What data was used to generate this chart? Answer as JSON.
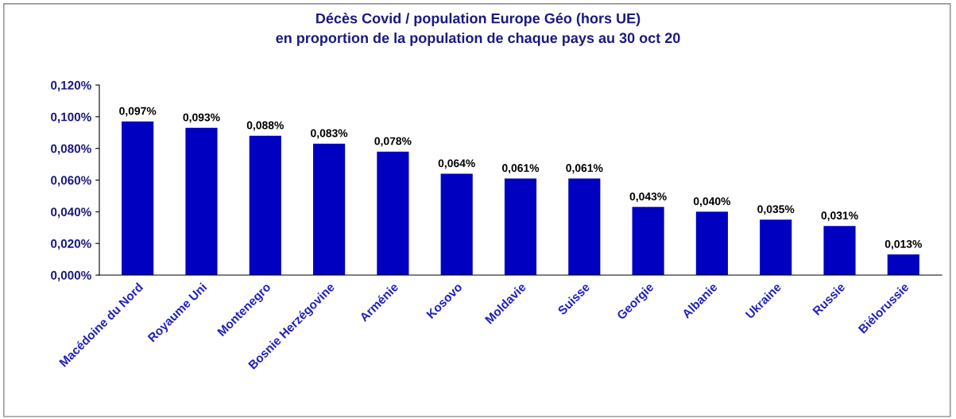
{
  "chart_data": {
    "type": "bar",
    "title": "Décès Covid / population Europe Géo (hors UE)\nen proportion de la population de chaque pays au 30 oct 20",
    "categories": [
      "Macédoine du Nord",
      "Royaume Uni",
      "Montenegro",
      "Bosnie Herzégovine",
      "Arménie",
      "Kosovo",
      "Moldavie",
      "Suisse",
      "Georgie",
      "Albanie",
      "Ukraine",
      "Russie",
      "Biélorussie"
    ],
    "values": [
      0.097,
      0.093,
      0.088,
      0.083,
      0.078,
      0.064,
      0.061,
      0.061,
      0.043,
      0.04,
      0.035,
      0.031,
      0.013
    ],
    "value_labels": [
      "0,097%",
      "0,093%",
      "0,088%",
      "0,083%",
      "0,078%",
      "0,064%",
      "0,061%",
      "0,061%",
      "0,043%",
      "0,040%",
      "0,035%",
      "0,031%",
      "0,013%"
    ],
    "color": "#0000c0",
    "ylim": [
      0,
      0.12
    ],
    "yticks": [
      {
        "value": 0,
        "label": "0,000%"
      },
      {
        "value": 0.02,
        "label": "0,020%"
      },
      {
        "value": 0.04,
        "label": "0,040%"
      },
      {
        "value": 0.06,
        "label": "0,060%"
      },
      {
        "value": 0.08,
        "label": "0,080%"
      },
      {
        "value": 0.1,
        "label": "0,100%"
      },
      {
        "value": 0.12,
        "label": "0,120%"
      }
    ]
  }
}
